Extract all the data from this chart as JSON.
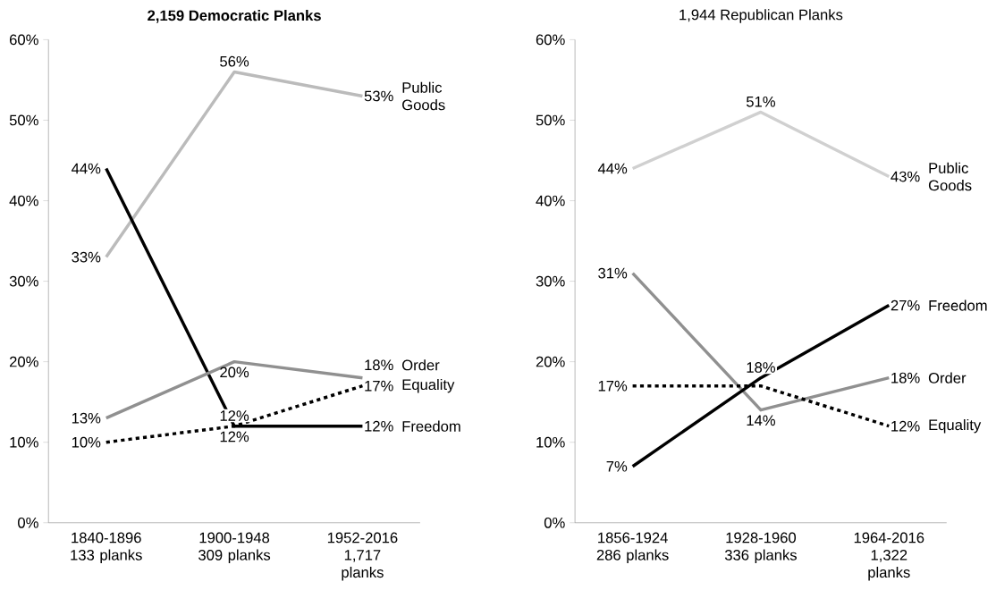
{
  "chart_data": [
    {
      "type": "line",
      "title": "2,159 Democratic Planks",
      "categories": [
        "1840-1896 133 planks",
        "1900-1948 309 planks",
        "1952-2016 1,717 planks"
      ],
      "ylim": [
        0,
        60
      ],
      "yticks": [
        {
          "value": 0,
          "label": "0%"
        },
        {
          "value": 10,
          "label": "10%"
        },
        {
          "value": 20,
          "label": "20%"
        },
        {
          "value": 30,
          "label": "30%"
        },
        {
          "value": 40,
          "label": "40%"
        },
        {
          "value": 50,
          "label": "50%"
        },
        {
          "value": 60,
          "label": "60%"
        }
      ],
      "legend": false,
      "grid": false,
      "marker": "none",
      "series": [
        {
          "name": "Public Goods",
          "color": "#bbbbbb",
          "line_style": "solid",
          "values": [
            33,
            56,
            53
          ],
          "value_labels": [
            "33%",
            "56%",
            "53%"
          ]
        },
        {
          "name": "Freedom",
          "color": "#000000",
          "line_style": "solid",
          "values": [
            44,
            12,
            12
          ],
          "value_labels": [
            "44%",
            "12%",
            "12%"
          ]
        },
        {
          "name": "Equality",
          "color": "#000000",
          "line_style": "dashed",
          "values": [
            10,
            12,
            17
          ],
          "value_labels": [
            "10%",
            "12%",
            "17%"
          ]
        },
        {
          "name": "Order",
          "color": "#909090",
          "line_style": "solid",
          "values": [
            13,
            20,
            18
          ],
          "value_labels": [
            "13%",
            "20%",
            "18%"
          ]
        }
      ]
    },
    {
      "type": "line",
      "title": "1,944 Republican Planks",
      "categories": [
        "1856-1924 286 planks",
        "1928-1960 336 planks",
        "1964-2016 1,322 planks"
      ],
      "ylim": [
        0,
        60
      ],
      "yticks": [
        {
          "value": 0,
          "label": "0%"
        },
        {
          "value": 10,
          "label": "10%"
        },
        {
          "value": 20,
          "label": "20%"
        },
        {
          "value": 30,
          "label": "30%"
        },
        {
          "value": 40,
          "label": "40%"
        },
        {
          "value": 50,
          "label": "50%"
        },
        {
          "value": 60,
          "label": "60%"
        }
      ],
      "legend": false,
      "grid": false,
      "marker": "none",
      "series": [
        {
          "name": "Public Goods",
          "color": "#d0d0d0",
          "line_style": "solid",
          "values": [
            44,
            51,
            43
          ],
          "value_labels": [
            "44%",
            "51%",
            "43%"
          ]
        },
        {
          "name": "Order",
          "color": "#909090",
          "line_style": "solid",
          "values": [
            31,
            14,
            18
          ],
          "value_labels": [
            "31%",
            "14%",
            "18%"
          ]
        },
        {
          "name": "Freedom",
          "color": "#000000",
          "line_style": "solid",
          "values": [
            7,
            18,
            27
          ],
          "value_labels": [
            "7%",
            "18%",
            "27%"
          ]
        },
        {
          "name": "Equality",
          "color": "#000000",
          "line_style": "dashed",
          "values": [
            17,
            17,
            12
          ],
          "value_labels": [
            "17%",
            null,
            "12%"
          ]
        }
      ]
    }
  ]
}
